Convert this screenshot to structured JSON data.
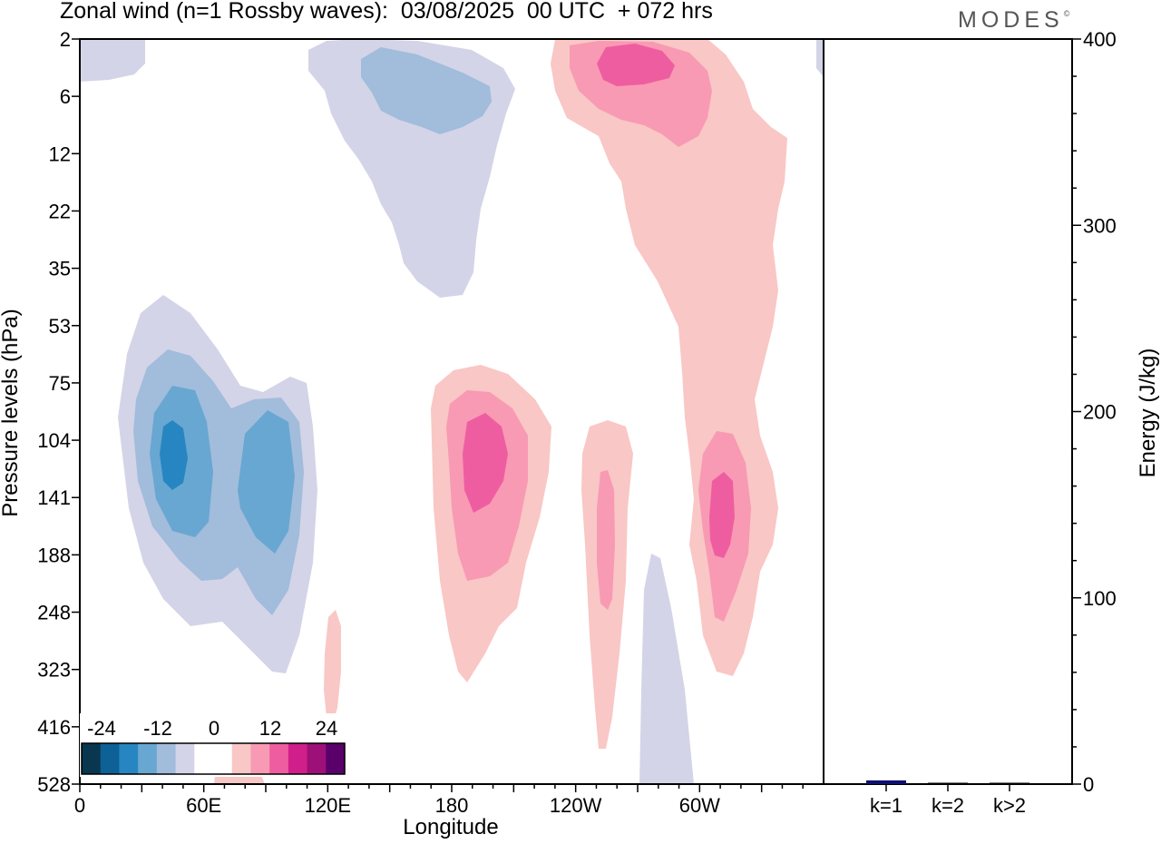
{
  "title": "Zonal wind (n=1 Rossby waves):  03/08/2025  00 UTC  + 072 hrs",
  "logo": "MODES",
  "logo_mark": "©",
  "chart_data": [
    {
      "type": "contour",
      "xlabel": "Longitude",
      "ylabel": "Pressure levels (hPa)",
      "xticks": [
        "0",
        "60E",
        "120E",
        "180",
        "120W",
        "60W"
      ],
      "xtick_degrees": [
        0,
        60,
        120,
        180,
        240,
        300
      ],
      "xlim": [
        0,
        360
      ],
      "yticks": [
        "2",
        "6",
        "12",
        "22",
        "35",
        "53",
        "75",
        "104",
        "141",
        "188",
        "248",
        "323",
        "416",
        "528"
      ],
      "colorbar": {
        "labels": [
          "-24",
          "-12",
          "0",
          "12",
          "24"
        ],
        "colors": [
          "#08374f",
          "#0d6196",
          "#2786c1",
          "#68a7d1",
          "#a2bcdb",
          "#d3d4e7",
          "#ffffff",
          "#ffffff",
          "#f9c7c5",
          "#f89ab3",
          "#ef5da1",
          "#d01f8a",
          "#9d1078",
          "#5a006a"
        ]
      },
      "contour_colors": {
        "neg_light": "#d3d4e7",
        "neg_mid": "#a2bcdb",
        "neg_dark": "#68a7d1",
        "neg_darkest": "#2786c1",
        "pos_light": "#f9c7c5",
        "pos_mid": "#f89ab3",
        "pos_dark": "#ef5da1"
      }
    },
    {
      "type": "bar",
      "categories": [
        "k=1",
        "k=2",
        "k>2"
      ],
      "values": [
        2,
        0.5,
        0.5
      ],
      "ylabel": "Energy (J/kg)",
      "ylim": [
        0,
        400
      ],
      "yticks": [
        "0",
        "100",
        "200",
        "300",
        "400"
      ],
      "bar_colors": [
        "#101070",
        "#000000",
        "#000000"
      ]
    }
  ]
}
